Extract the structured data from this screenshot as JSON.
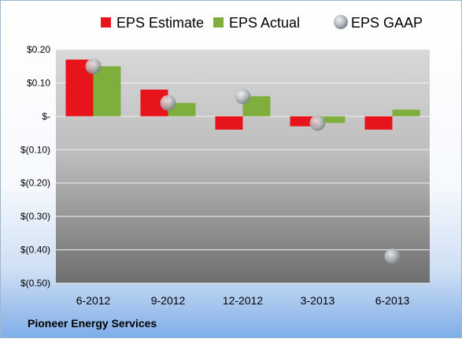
{
  "company": "Pioneer Energy Services",
  "chart_data": {
    "type": "bar",
    "categories": [
      "6-2012",
      "9-2012",
      "12-2012",
      "3-2013",
      "6-2013"
    ],
    "series": [
      {
        "name": "EPS Estimate",
        "kind": "bar",
        "color": "#e8141c",
        "values": [
          0.17,
          0.08,
          -0.04,
          -0.03,
          -0.04
        ]
      },
      {
        "name": "EPS Actual",
        "kind": "bar",
        "color": "#7fae3c",
        "values": [
          0.15,
          0.04,
          0.06,
          -0.02,
          0.02
        ]
      },
      {
        "name": "EPS GAAP",
        "kind": "marker",
        "color": "#aeb4bb",
        "values": [
          0.15,
          0.04,
          0.06,
          -0.02,
          -0.42
        ]
      }
    ],
    "yticks": [
      0.2,
      0.1,
      0,
      -0.1,
      -0.2,
      -0.3,
      -0.4,
      -0.5
    ],
    "ytick_labels": [
      "$0.20",
      "$0.10",
      "$-",
      "$(0.10)",
      "$(0.20)",
      "$(0.30)",
      "$(0.40)",
      "$(0.50)"
    ],
    "ylim": [
      -0.5,
      0.2
    ],
    "grid": true,
    "legend_position": "top"
  }
}
